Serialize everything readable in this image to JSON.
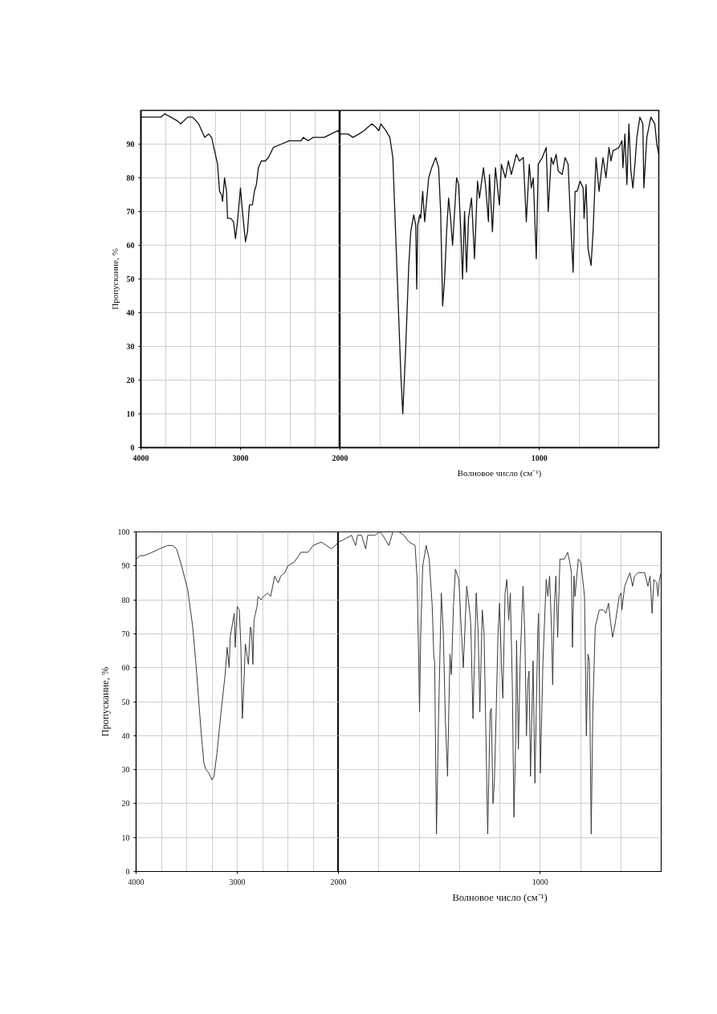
{
  "chart_data": [
    {
      "type": "line",
      "ylabel": "Пропускание, %",
      "xlim": [
        4000,
        2000
      ],
      "ylim": [
        0,
        100
      ],
      "xticks": [
        4000,
        {
          "value": 3750,
          "label": null
        },
        {
          "value": 3500,
          "label": null
        },
        {
          "value": 3250,
          "label": null
        },
        3000,
        {
          "value": 2750,
          "label": null
        },
        {
          "value": 2500,
          "label": null
        },
        {
          "value": 2250,
          "label": null
        },
        {
          "value": 2000,
          "label": null
        }
      ],
      "yticks": [
        0,
        10,
        20,
        30,
        40,
        50,
        60,
        70,
        80,
        90
      ],
      "grid": true,
      "series": [
        {
          "color": "#111111",
          "x": [
            4000,
            3910,
            3800,
            3760,
            3700,
            3640,
            3600,
            3530,
            3480,
            3420,
            3360,
            3320,
            3290,
            3260,
            3230,
            3210,
            3190,
            3180,
            3160,
            3140,
            3130,
            3100,
            3070,
            3050,
            3030,
            3000,
            2980,
            2950,
            2930,
            2910,
            2880,
            2860,
            2840,
            2820,
            2790,
            2750,
            2720,
            2670,
            2590,
            2510,
            2390,
            2370,
            2320,
            2270,
            2160,
            2020,
            2000
          ],
          "values": [
            98,
            98,
            98,
            99,
            98,
            97,
            96,
            98,
            98,
            96,
            92,
            93,
            92,
            88,
            84,
            76,
            75,
            73,
            80,
            76,
            68,
            68,
            67,
            62,
            67,
            77,
            70,
            61,
            64,
            72,
            72,
            76,
            78,
            83,
            85,
            85,
            86,
            89,
            90,
            91,
            91,
            92,
            91,
            92,
            92,
            94,
            93
          ]
        }
      ]
    },
    {
      "type": "line",
      "xlabel": "Волновое число (см⁻¹)",
      "xlim": [
        2000,
        400
      ],
      "ylim": [
        0,
        100
      ],
      "xticks": [
        2000,
        {
          "value": 1800,
          "label": null
        },
        {
          "value": 1600,
          "label": null
        },
        {
          "value": 1400,
          "label": null
        },
        {
          "value": 1200,
          "label": null
        },
        1000,
        {
          "value": 800,
          "label": null
        },
        {
          "value": 600,
          "label": null
        }
      ],
      "yticks": [
        0,
        10,
        20,
        30,
        40,
        50,
        60,
        70,
        80,
        90
      ],
      "grid": true,
      "tick_labels": "x",
      "series": [
        {
          "color": "#111111",
          "x": [
            2000,
            1960,
            1935,
            1905,
            1880,
            1840,
            1820,
            1805,
            1795,
            1770,
            1750,
            1735,
            1725,
            1710,
            1695,
            1685,
            1670,
            1655,
            1645,
            1630,
            1620,
            1615,
            1610,
            1600,
            1595,
            1585,
            1575,
            1555,
            1540,
            1520,
            1505,
            1495,
            1485,
            1475,
            1465,
            1455,
            1445,
            1435,
            1415,
            1405,
            1395,
            1385,
            1375,
            1365,
            1355,
            1340,
            1325,
            1310,
            1300,
            1280,
            1270,
            1255,
            1250,
            1235,
            1220,
            1200,
            1190,
            1170,
            1155,
            1140,
            1115,
            1100,
            1080,
            1065,
            1050,
            1040,
            1030,
            1015,
            1005,
            985,
            965,
            955,
            940,
            930,
            915,
            905,
            885,
            870,
            855,
            845,
            830,
            820,
            810,
            795,
            780,
            775,
            765,
            755,
            740,
            730,
            715,
            700,
            680,
            665,
            650,
            640,
            630,
            600,
            585,
            580,
            570,
            560,
            550,
            540,
            530,
            520,
            510,
            495,
            480,
            475,
            460,
            440,
            420,
            410,
            400
          ],
          "values": [
            93,
            93,
            92,
            93,
            94,
            96,
            95,
            94,
            96,
            94,
            92,
            86,
            70,
            46,
            22,
            10,
            30,
            54,
            64,
            69,
            66,
            47,
            66,
            69,
            68,
            76,
            67,
            80,
            83,
            86,
            83,
            70,
            42,
            50,
            64,
            74,
            68,
            60,
            80,
            78,
            66,
            50,
            70,
            52,
            68,
            74,
            56,
            79,
            74,
            83,
            78,
            67,
            81,
            64,
            83,
            72,
            84,
            80,
            85,
            81,
            87,
            85,
            86,
            67,
            84,
            77,
            80,
            56,
            84,
            86,
            89,
            70,
            86,
            84,
            87,
            82,
            81,
            86,
            84,
            70,
            52,
            76,
            76,
            79,
            77,
            68,
            78,
            59,
            54,
            64,
            86,
            76,
            86,
            80,
            89,
            85,
            88,
            89,
            91,
            83,
            93,
            78,
            96,
            82,
            77,
            84,
            92,
            98,
            96,
            77,
            92,
            98,
            96,
            90,
            87
          ]
        }
      ]
    },
    {
      "type": "line",
      "ylabel": "Пропускание, %",
      "xlim": [
        4000,
        2000
      ],
      "ylim": [
        0,
        100
      ],
      "xticks": [
        4000,
        {
          "value": 3750,
          "label": null
        },
        {
          "value": 3500,
          "label": null
        },
        {
          "value": 3250,
          "label": null
        },
        3000,
        {
          "value": 2750,
          "label": null
        },
        {
          "value": 2500,
          "label": null
        },
        {
          "value": 2250,
          "label": null
        },
        {
          "value": 2000,
          "label": null
        }
      ],
      "yticks": [
        0,
        10,
        20,
        30,
        40,
        50,
        60,
        70,
        80,
        90,
        100
      ],
      "grid": true,
      "series": [
        {
          "color": "#3a3a3a",
          "x": [
            4000,
            3960,
            3920,
            3840,
            3770,
            3690,
            3640,
            3600,
            3550,
            3490,
            3440,
            3400,
            3360,
            3330,
            3310,
            3280,
            3250,
            3230,
            3200,
            3160,
            3120,
            3100,
            3080,
            3070,
            3030,
            3020,
            3000,
            2980,
            2965,
            2950,
            2940,
            2920,
            2890,
            2870,
            2860,
            2845,
            2835,
            2805,
            2795,
            2765,
            2740,
            2700,
            2670,
            2630,
            2595,
            2570,
            2530,
            2500,
            2440,
            2370,
            2300,
            2250,
            2170,
            2120,
            2070,
            2030,
            2000
          ],
          "values": [
            92,
            93,
            93,
            94,
            95,
            96,
            96,
            95,
            90,
            83,
            72,
            58,
            42,
            32,
            30,
            29,
            27,
            28,
            35,
            47,
            58,
            66,
            60,
            69,
            76,
            66,
            78,
            77,
            67,
            45,
            51,
            67,
            61,
            72,
            71,
            61,
            74,
            78,
            81,
            80,
            81,
            82,
            81,
            87,
            85,
            87,
            88,
            90,
            91,
            94,
            94,
            96,
            97,
            96,
            95,
            96,
            97
          ]
        }
      ]
    },
    {
      "type": "line",
      "xlabel": "Волновое число (см⁻¹)",
      "xlim": [
        2000,
        400
      ],
      "ylim": [
        0,
        100
      ],
      "xticks": [
        2000,
        {
          "value": 1800,
          "label": null
        },
        {
          "value": 1600,
          "label": null
        },
        {
          "value": 1400,
          "label": null
        },
        {
          "value": 1200,
          "label": null
        },
        1000,
        {
          "value": 800,
          "label": null
        },
        {
          "value": 600,
          "label": null
        }
      ],
      "yticks": [
        0,
        10,
        20,
        30,
        40,
        50,
        60,
        70,
        80,
        90,
        100
      ],
      "grid": true,
      "tick_labels": "x",
      "series": [
        {
          "color": "#3a3a3a",
          "x": [
            2000,
            1965,
            1935,
            1915,
            1905,
            1885,
            1875,
            1865,
            1855,
            1820,
            1795,
            1780,
            1750,
            1730,
            1700,
            1675,
            1650,
            1620,
            1610,
            1602,
            1598,
            1592,
            1582,
            1565,
            1550,
            1535,
            1527,
            1523,
            1514,
            1503,
            1490,
            1480,
            1470,
            1466,
            1459,
            1453,
            1447,
            1440,
            1430,
            1420,
            1403,
            1390,
            1381,
            1364,
            1350,
            1344,
            1333,
            1317,
            1307,
            1299,
            1287,
            1278,
            1260,
            1248,
            1242,
            1234,
            1227,
            1218,
            1209,
            1201,
            1191,
            1185,
            1174,
            1165,
            1156,
            1148,
            1138,
            1130,
            1121,
            1117,
            1108,
            1099,
            1085,
            1076,
            1068,
            1061,
            1055,
            1048,
            1035,
            1026,
            1012,
            1008,
            999,
            986,
            970,
            962,
            953,
            943,
            938,
            930,
            922,
            913,
            902,
            880,
            864,
            853,
            845,
            840,
            832,
            827,
            811,
            798,
            780,
            771,
            763,
            756,
            747,
            739,
            727,
            707,
            687,
            674,
            661,
            652,
            641,
            628,
            608,
            599,
            595,
            581,
            555,
            542,
            532,
            515,
            482,
            466,
            455,
            445,
            436,
            422,
            416,
            409,
            400
          ],
          "values": [
            97,
            98,
            99,
            96,
            99,
            99,
            97,
            95,
            99,
            99,
            100,
            99,
            96,
            100,
            100,
            99,
            97,
            96,
            86,
            62,
            47,
            70,
            90,
            96,
            92,
            78,
            63,
            62,
            11,
            47,
            82,
            70,
            45,
            39,
            28,
            47,
            64,
            58,
            78,
            89,
            86,
            70,
            60,
            84,
            77,
            73,
            45,
            82,
            70,
            47,
            77,
            70,
            11,
            47,
            48,
            20,
            26,
            47,
            70,
            79,
            59,
            51,
            82,
            86,
            74,
            82,
            55,
            16,
            39,
            68,
            36,
            62,
            84,
            70,
            40,
            56,
            59,
            28,
            62,
            26,
            70,
            76,
            29,
            62,
            86,
            81,
            87,
            70,
            55,
            78,
            87,
            69,
            92,
            92,
            94,
            91,
            88,
            66,
            87,
            81,
            92,
            91,
            81,
            40,
            64,
            62,
            11,
            47,
            72,
            77,
            77,
            76,
            79,
            74,
            69,
            73,
            81,
            82,
            77,
            84,
            88,
            84,
            87,
            88,
            88,
            84,
            87,
            76,
            86,
            85,
            81,
            86,
            88
          ]
        }
      ]
    }
  ]
}
